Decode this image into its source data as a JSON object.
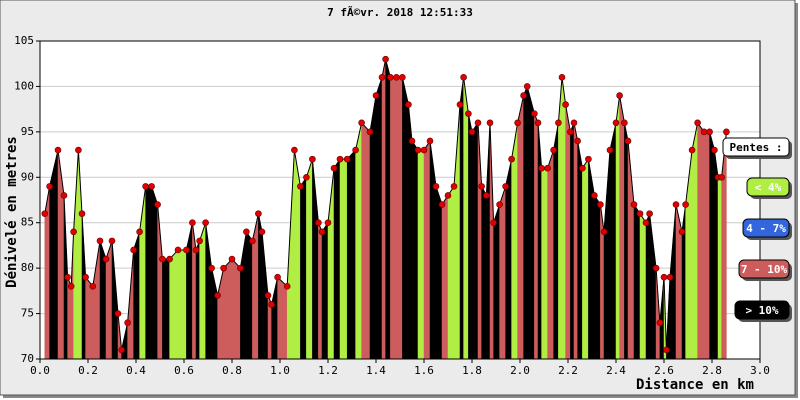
{
  "chart_data": {
    "type": "elevation-profile",
    "title": "7 fÃ©vr. 2018 12:51:33",
    "x_label": "Distance en km",
    "y_label": "Dénivelé en metres",
    "xlim": [
      0,
      3.0
    ],
    "ylim": [
      70,
      105
    ],
    "xticks": [
      {
        "value": 0,
        "label": "0.0"
      },
      0.2,
      0.4,
      0.6,
      0.8,
      {
        "value": 1,
        "label": "1.0"
      },
      1.2,
      1.4,
      1.6,
      1.8,
      {
        "value": 2,
        "label": "2.0"
      },
      2.2,
      2.4,
      2.6,
      2.8,
      {
        "value": 3,
        "label": "3.0"
      }
    ],
    "yticks": [
      70,
      75,
      80,
      85,
      90,
      95,
      100,
      105
    ],
    "grid": true,
    "marker_color": "#e00000",
    "x": [
      0.02,
      0.04,
      0.075,
      0.1,
      0.115,
      0.13,
      0.14,
      0.16,
      0.175,
      0.19,
      0.22,
      0.25,
      0.275,
      0.3,
      0.325,
      0.34,
      0.365,
      0.39,
      0.415,
      0.44,
      0.465,
      0.49,
      0.51,
      0.54,
      0.575,
      0.61,
      0.635,
      0.65,
      0.665,
      0.69,
      0.715,
      0.74,
      0.765,
      0.8,
      0.835,
      0.86,
      0.885,
      0.91,
      0.925,
      0.95,
      0.965,
      0.99,
      1.03,
      1.06,
      1.085,
      1.11,
      1.135,
      1.16,
      1.175,
      1.2,
      1.225,
      1.25,
      1.28,
      1.315,
      1.34,
      1.375,
      1.4,
      1.425,
      1.44,
      1.46,
      1.485,
      1.51,
      1.535,
      1.55,
      1.575,
      1.6,
      1.625,
      1.65,
      1.675,
      1.7,
      1.725,
      1.75,
      1.765,
      1.785,
      1.8,
      1.825,
      1.84,
      1.86,
      1.875,
      1.89,
      1.915,
      1.94,
      1.965,
      1.99,
      2.015,
      2.03,
      2.06,
      2.075,
      2.09,
      2.115,
      2.14,
      2.16,
      2.175,
      2.19,
      2.21,
      2.225,
      2.24,
      2.26,
      2.285,
      2.31,
      2.335,
      2.35,
      2.375,
      2.4,
      2.415,
      2.435,
      2.45,
      2.475,
      2.5,
      2.525,
      2.54,
      2.567,
      2.583,
      2.6,
      2.61,
      2.625,
      2.65,
      2.675,
      2.69,
      2.717,
      2.74,
      2.767,
      2.79,
      2.81,
      2.825,
      2.84,
      2.86
    ],
    "values": [
      86,
      89,
      93,
      88,
      79,
      78,
      84,
      93,
      86,
      79,
      78,
      83,
      81,
      83,
      75,
      71,
      74,
      82,
      84,
      89,
      89,
      87,
      81,
      81,
      82,
      82,
      85,
      82,
      83,
      85,
      80,
      77,
      80,
      81,
      80,
      84,
      83,
      86,
      84,
      77,
      76,
      79,
      78,
      93,
      89,
      90,
      92,
      85,
      84,
      85,
      91,
      92,
      92,
      93,
      96,
      95,
      99,
      101,
      103,
      101,
      101,
      101,
      98,
      94,
      93,
      93,
      94,
      89,
      87,
      88,
      89,
      98,
      101,
      97,
      95,
      96,
      89,
      88,
      96,
      85,
      87,
      89,
      92,
      96,
      99,
      100,
      97,
      96,
      91,
      91,
      93,
      96,
      101,
      98,
      95,
      96,
      94,
      91,
      92,
      88,
      87,
      84,
      93,
      96,
      99,
      96,
      94,
      87,
      86,
      85,
      86,
      80,
      74,
      79,
      71,
      79,
      87,
      84,
      87,
      93,
      96,
      95,
      95,
      93,
      90,
      90,
      95
    ],
    "segment_colors": [
      "#cd5c5c",
      "#000000",
      "#cd5c5c",
      "#000000",
      "#cd5c5c",
      "#cd5c5c",
      "#b0ee44",
      "#b0ee44",
      "#000000",
      "#cd5c5c",
      "#cd5c5c",
      "#000000",
      "#cd5c5c",
      "#000000",
      "#cd5c5c",
      "#000000",
      "#cd5c5c",
      "#000000",
      "#b0ee44",
      "#000000",
      "#000000",
      "#cd5c5c",
      "#000000",
      "#b0ee44",
      "#b0ee44",
      "#000000",
      "#cd5c5c",
      "#000000",
      "#b0ee44",
      "#000000",
      "#000000",
      "#cd5c5c",
      "#cd5c5c",
      "#cd5c5c",
      "#000000",
      "#000000",
      "#cd5c5c",
      "#000000",
      "#000000",
      "#cd5c5c",
      "#000000",
      "#cd5c5c",
      "#b0ee44",
      "#b0ee44",
      "#000000",
      "#b0ee44",
      "#000000",
      "#cd5c5c",
      "#000000",
      "#b0ee44",
      "#000000",
      "#b0ee44",
      "#000000",
      "#b0ee44",
      "#cd5c5c",
      "#000000",
      "#000000",
      "#cd5c5c",
      "#000000",
      "#cd5c5c",
      "#cd5c5c",
      "#000000",
      "#000000",
      "#000000",
      "#b0ee44",
      "#cd5c5c",
      "#000000",
      "#000000",
      "#cd5c5c",
      "#b0ee44",
      "#b0ee44",
      "#000000",
      "#b0ee44",
      "#000000",
      "#000000",
      "#cd5c5c",
      "#000000",
      "#000000",
      "#cd5c5c",
      "#000000",
      "#cd5c5c",
      "#000000",
      "#b0ee44",
      "#cd5c5c",
      "#000000",
      "#000000",
      "#cd5c5c",
      "#000000",
      "#b0ee44",
      "#cd5c5c",
      "#000000",
      "#b0ee44",
      "#b0ee44",
      "#cd5c5c",
      "#000000",
      "#cd5c5c",
      "#000000",
      "#b0ee44",
      "#000000",
      "#000000",
      "#cd5c5c",
      "#000000",
      "#000000",
      "#b0ee44",
      "#cd5c5c",
      "#000000",
      "#cd5c5c",
      "#000000",
      "#b0ee44",
      "#000000",
      "#000000",
      "#cd5c5c",
      "#000000",
      "#b0ee44",
      "#000000",
      "#000000",
      "#cd5c5c",
      "#000000",
      "#b0ee44",
      "#b0ee44",
      "#cd5c5c",
      "#cd5c5c",
      "#000000",
      "#000000",
      "#b0ee44",
      "#cd5c5c"
    ],
    "legend": {
      "title": "Pentes :",
      "items": [
        {
          "label": "< 4%",
          "color": "#b0ee44"
        },
        {
          "label": "4 - 7%",
          "color": "#3366dd"
        },
        {
          "label": "7 - 10%",
          "color": "#cd5c5c"
        },
        {
          "label": "> 10%",
          "color": "#000000"
        }
      ]
    }
  }
}
